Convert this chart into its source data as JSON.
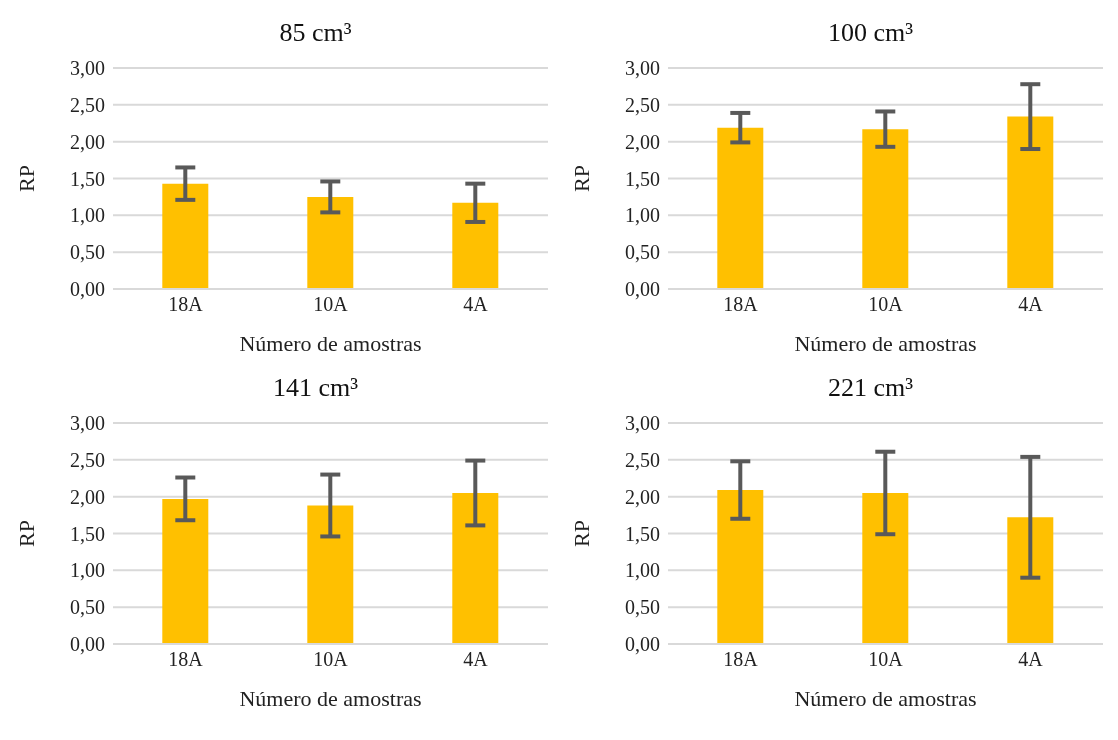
{
  "chart_data": [
    {
      "type": "bar",
      "title": "85 cm³",
      "xlabel": "Número de amostras",
      "ylabel": "RP",
      "categories": [
        "18A",
        "10A",
        "4A"
      ],
      "values": [
        1.43,
        1.25,
        1.17
      ],
      "errors": [
        0.22,
        0.21,
        0.26
      ],
      "color": "#ffc000",
      "ylim": [
        0,
        3
      ],
      "yticks": [
        {
          "value": 0,
          "label": "0,00"
        },
        {
          "value": 0.5,
          "label": "0,50"
        },
        {
          "value": 1,
          "label": "1,00"
        },
        {
          "value": 1.5,
          "label": "1,50"
        },
        {
          "value": 2,
          "label": "2,00"
        },
        {
          "value": 2.5,
          "label": "2,50"
        },
        {
          "value": 3,
          "label": "3,00"
        }
      ],
      "grid": "y"
    },
    {
      "type": "bar",
      "title": "100 cm³",
      "xlabel": "Número de amostras",
      "ylabel": "RP",
      "categories": [
        "18A",
        "10A",
        "4A"
      ],
      "values": [
        2.19,
        2.17,
        2.34
      ],
      "errors": [
        0.2,
        0.24,
        0.44
      ],
      "color": "#ffc000",
      "ylim": [
        0,
        3
      ],
      "yticks": [
        {
          "value": 0,
          "label": "0,00"
        },
        {
          "value": 0.5,
          "label": "0,50"
        },
        {
          "value": 1,
          "label": "1,00"
        },
        {
          "value": 1.5,
          "label": "1,50"
        },
        {
          "value": 2,
          "label": "2,00"
        },
        {
          "value": 2.5,
          "label": "2,50"
        },
        {
          "value": 3,
          "label": "3,00"
        }
      ],
      "grid": "y"
    },
    {
      "type": "bar",
      "title": "141 cm³",
      "xlabel": "Número de amostras",
      "ylabel": "RP",
      "categories": [
        "18A",
        "10A",
        "4A"
      ],
      "values": [
        1.97,
        1.88,
        2.05
      ],
      "errors": [
        0.29,
        0.42,
        0.44
      ],
      "color": "#ffc000",
      "ylim": [
        0,
        3
      ],
      "yticks": [
        {
          "value": 0,
          "label": "0,00"
        },
        {
          "value": 0.5,
          "label": "0,50"
        },
        {
          "value": 1,
          "label": "1,00"
        },
        {
          "value": 1.5,
          "label": "1,50"
        },
        {
          "value": 2,
          "label": "2,00"
        },
        {
          "value": 2.5,
          "label": "2,50"
        },
        {
          "value": 3,
          "label": "3,00"
        }
      ],
      "grid": "y"
    },
    {
      "type": "bar",
      "title": "221 cm³",
      "xlabel": "Número de amostras",
      "ylabel": "RP",
      "categories": [
        "18A",
        "10A",
        "4A"
      ],
      "values": [
        2.09,
        2.05,
        1.72
      ],
      "errors": [
        0.39,
        0.56,
        0.82
      ],
      "color": "#ffc000",
      "ylim": [
        0,
        3
      ],
      "yticks": [
        {
          "value": 0,
          "label": "0,00"
        },
        {
          "value": 0.5,
          "label": "0,50"
        },
        {
          "value": 1,
          "label": "1,00"
        },
        {
          "value": 1.5,
          "label": "1,50"
        },
        {
          "value": 2,
          "label": "2,00"
        },
        {
          "value": 2.5,
          "label": "2,50"
        },
        {
          "value": 3,
          "label": "3,00"
        }
      ],
      "grid": "y"
    }
  ]
}
